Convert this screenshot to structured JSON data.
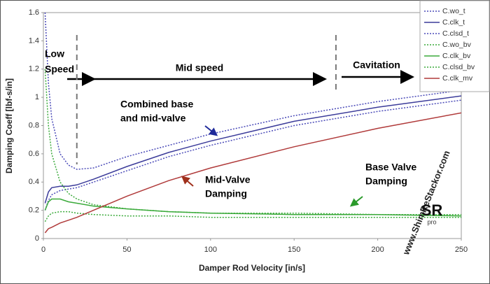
{
  "chart_data": {
    "type": "line",
    "xlabel": "Damper Rod Velocity [in/s]",
    "ylabel": "Damping Coeff [lbf-s/in]",
    "x": [
      1,
      3,
      5,
      10,
      15,
      20,
      30,
      50,
      75,
      100,
      150,
      200,
      250
    ],
    "series": [
      {
        "name": "C.wo_t",
        "color": "#4a4ab8",
        "dash": "dotted",
        "values": [
          1.6,
          1.1,
          0.85,
          0.6,
          0.52,
          0.49,
          0.5,
          0.58,
          0.66,
          0.74,
          0.87,
          0.97,
          1.05
        ]
      },
      {
        "name": "C.clk_t",
        "color": "#3c3c9a",
        "dash": "solid",
        "values": [
          0.25,
          0.33,
          0.36,
          0.37,
          0.37,
          0.38,
          0.42,
          0.51,
          0.61,
          0.69,
          0.83,
          0.93,
          1.01
        ]
      },
      {
        "name": "C.clsd_t",
        "color": "#4a4ab8",
        "dash": "dotted",
        "values": [
          0.2,
          0.27,
          0.31,
          0.34,
          0.35,
          0.36,
          0.4,
          0.48,
          0.58,
          0.66,
          0.8,
          0.9,
          0.98
        ]
      },
      {
        "name": "C.wo_bv",
        "color": "#3aaa3a",
        "dash": "dotted",
        "values": [
          1.2,
          0.8,
          0.6,
          0.4,
          0.32,
          0.28,
          0.24,
          0.21,
          0.19,
          0.18,
          0.18,
          0.17,
          0.17
        ]
      },
      {
        "name": "C.clk_bv",
        "color": "#3aaa3a",
        "dash": "solid",
        "values": [
          0.2,
          0.26,
          0.28,
          0.28,
          0.26,
          0.25,
          0.23,
          0.21,
          0.19,
          0.18,
          0.17,
          0.17,
          0.16
        ]
      },
      {
        "name": "C.clsd_bv",
        "color": "#3aaa3a",
        "dash": "dotted",
        "values": [
          0.12,
          0.16,
          0.18,
          0.19,
          0.19,
          0.18,
          0.17,
          0.16,
          0.16,
          0.15,
          0.15,
          0.15,
          0.15
        ]
      },
      {
        "name": "C.clk_mv",
        "color": "#b03a3a",
        "dash": "solid",
        "values": [
          0.04,
          0.07,
          0.08,
          0.11,
          0.13,
          0.15,
          0.2,
          0.3,
          0.41,
          0.5,
          0.65,
          0.78,
          0.89
        ]
      }
    ],
    "xlim": [
      0,
      250
    ],
    "xticks": [
      0,
      50,
      100,
      150,
      200,
      250
    ],
    "ylim": [
      0,
      1.6
    ],
    "yticks": [
      0,
      0.2,
      0.4,
      0.6,
      0.8,
      1,
      1.2,
      1.4,
      1.6
    ],
    "vlines": [
      20,
      175
    ],
    "annotations": {
      "low": "Low",
      "speed": "Speed",
      "mid_speed": "Mid speed",
      "cavitation": "Cavitation",
      "combined_1": "Combined base",
      "combined_2": "and mid-valve",
      "mid_valve_1": "Mid-Valve",
      "mid_valve_2": "Damping",
      "base_valve_1": "Base Valve",
      "base_valve_2": "Damping",
      "watermark": "www.ShimReStackor.com",
      "logo": "SR",
      "logo_sub": "pro"
    },
    "legend": "upper right"
  }
}
